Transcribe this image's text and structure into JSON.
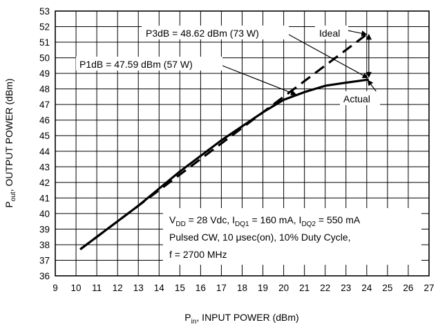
{
  "chart_data": {
    "type": "line",
    "xlabel_main": "P",
    "xlabel_sub": "in",
    "xlabel_rest": ", INPUT POWER (dBm)",
    "ylabel_main": "P",
    "ylabel_sub": "out",
    "ylabel_rest": ", OUTPUT POWER (dBm)",
    "xlim": [
      9,
      27
    ],
    "ylim": [
      36,
      53
    ],
    "x_ticks": [
      9,
      10,
      11,
      12,
      13,
      14,
      15,
      16,
      17,
      18,
      19,
      20,
      21,
      22,
      23,
      24,
      25,
      26,
      27
    ],
    "y_ticks": [
      36,
      37,
      38,
      39,
      40,
      41,
      42,
      43,
      44,
      45,
      46,
      47,
      48,
      49,
      50,
      51,
      52,
      53
    ],
    "grid": true,
    "series": [
      {
        "name": "Ideal",
        "style": "dashed",
        "x": [
          10.2,
          24.1
        ],
        "y": [
          37.7,
          51.6
        ]
      },
      {
        "name": "Actual",
        "style": "solid",
        "x": [
          10.2,
          11,
          12,
          13,
          14,
          15,
          16,
          17,
          18,
          19,
          20,
          21,
          22,
          23,
          24.1
        ],
        "y": [
          37.7,
          38.5,
          39.5,
          40.5,
          41.6,
          42.7,
          43.7,
          44.7,
          45.6,
          46.5,
          47.3,
          47.8,
          48.2,
          48.4,
          48.6
        ]
      }
    ],
    "annotations": {
      "p3db": "P3dB = 48.62 dBm (73 W)",
      "p1db": "P1dB = 47.59 dBm (57 W)",
      "ideal": "Ideal",
      "actual": "Actual"
    },
    "conditions": {
      "line1": {
        "a": "V",
        "a_sub": "DD",
        "b": " = 28 Vdc, I",
        "b_sub": "DQ1",
        "c": " = 160 mA, I",
        "c_sub": "DQ2",
        "d": " = 550 mA"
      },
      "line2": "Pulsed CW, 10 μsec(on), 10% Duty Cycle,",
      "line3": "f = 2700 MHz"
    },
    "colors": {
      "line": "#000000",
      "grid": "#000000",
      "background": "#ffffff"
    }
  }
}
